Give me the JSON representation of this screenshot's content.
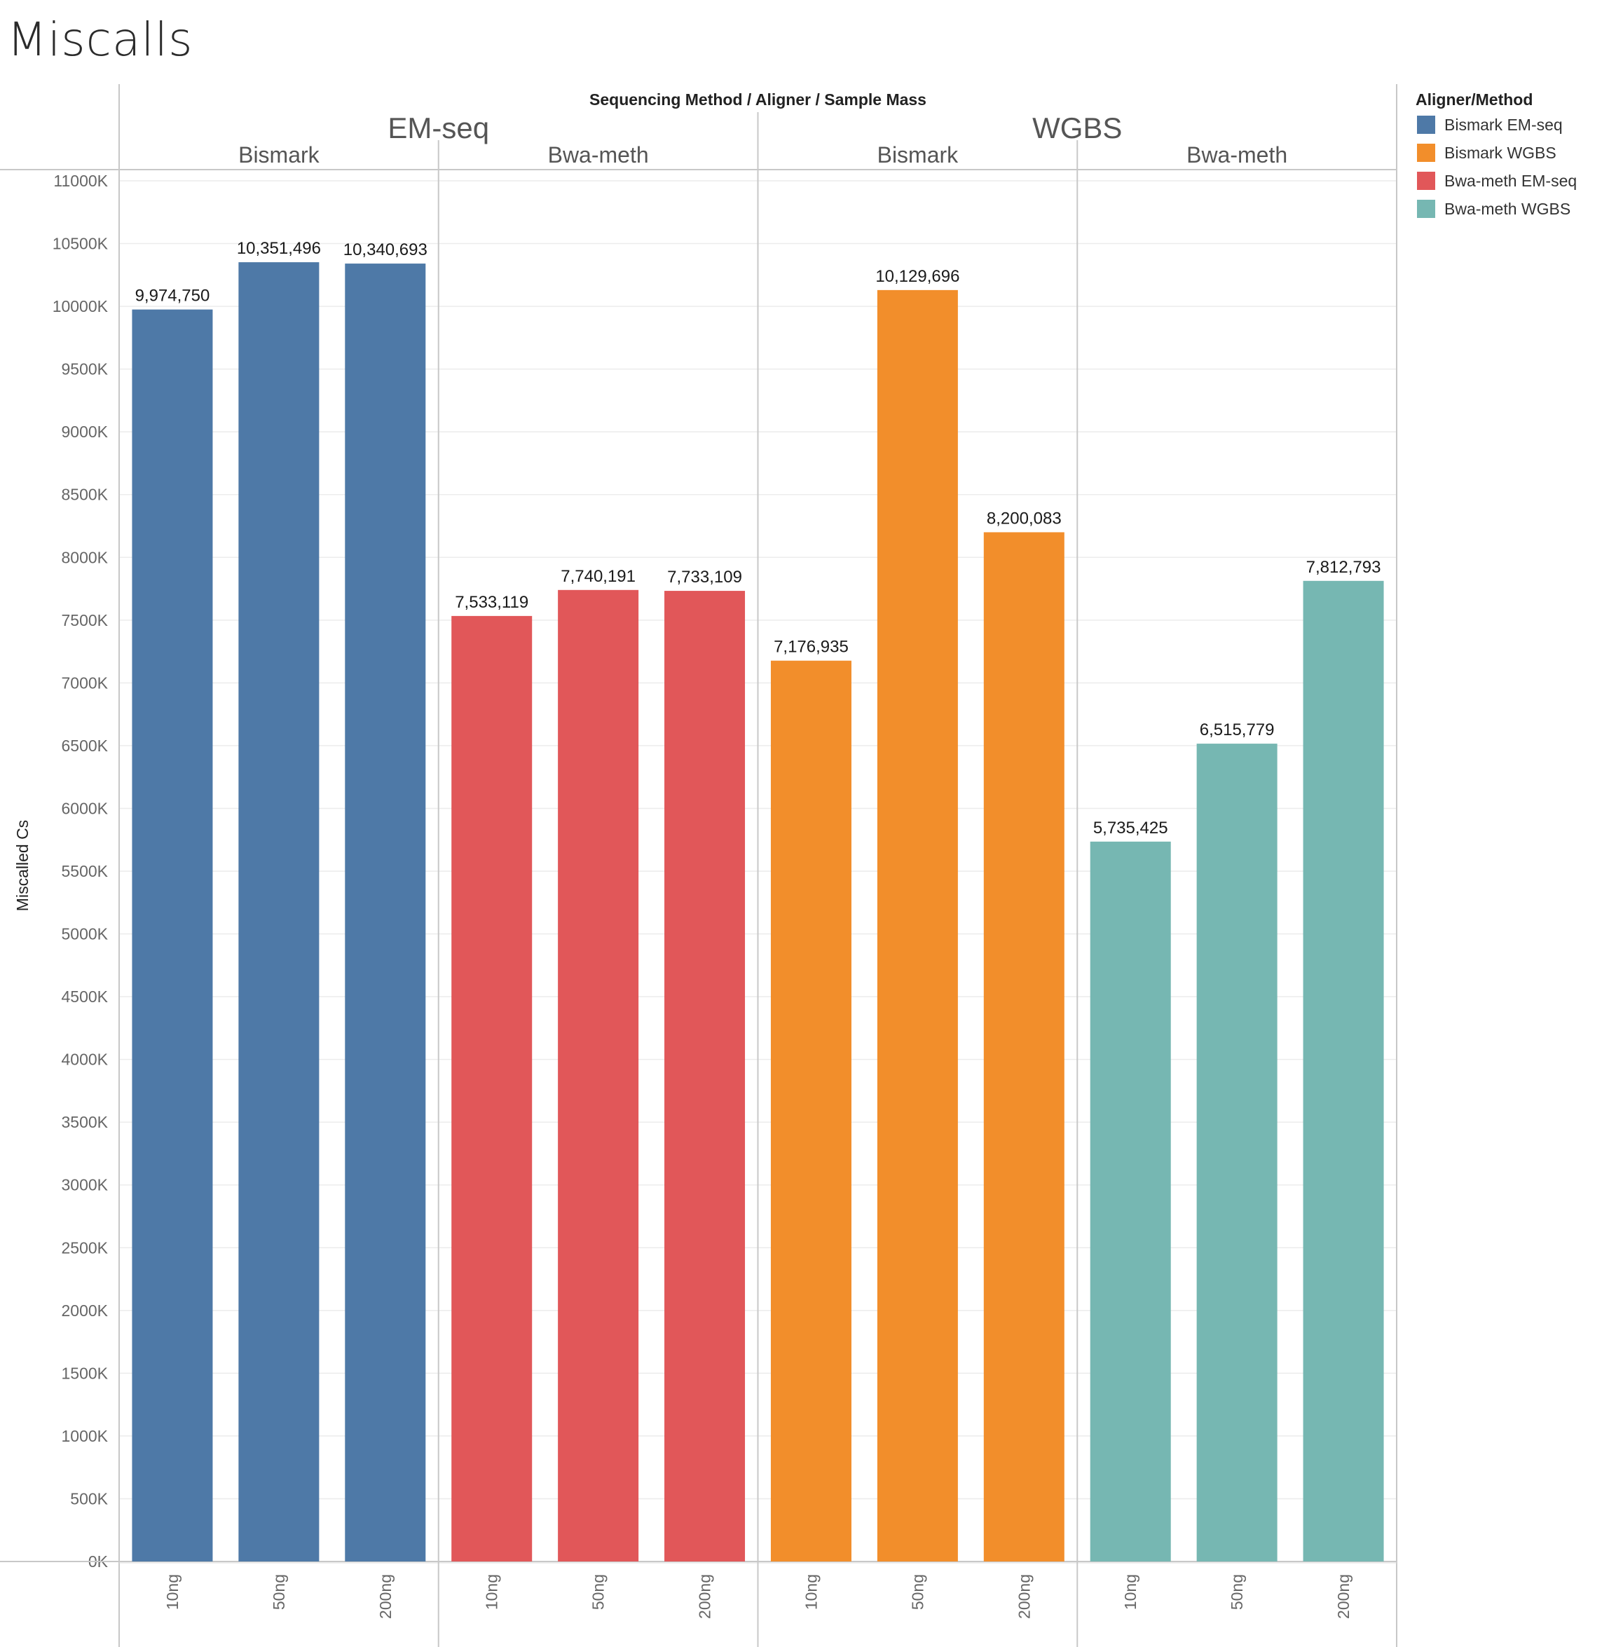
{
  "title": "Miscalls",
  "chart_data": {
    "type": "bar",
    "column_header": "Sequencing Method / Aligner / Sample Mass",
    "ylabel": "Miscalled Cs",
    "ylim": [
      0,
      11000000
    ],
    "yticks": [
      "0K",
      "500K",
      "1000K",
      "1500K",
      "2000K",
      "2500K",
      "3000K",
      "3500K",
      "4000K",
      "4500K",
      "5000K",
      "5500K",
      "6000K",
      "6500K",
      "7000K",
      "7500K",
      "8000K",
      "8500K",
      "9000K",
      "9500K",
      "10000K",
      "10500K",
      "11000K"
    ],
    "grid": true,
    "legend": {
      "title": "Aligner/Method",
      "placement": "right",
      "items": [
        {
          "label": "Bismark EM-seq",
          "color": "#4e79a7"
        },
        {
          "label": "Bismark WGBS",
          "color": "#f28e2b"
        },
        {
          "label": "Bwa-meth EM-seq",
          "color": "#e15759"
        },
        {
          "label": "Bwa-meth WGBS",
          "color": "#76b7b2"
        }
      ]
    },
    "methods": [
      {
        "name": "EM-seq",
        "aligners": [
          {
            "name": "Bismark",
            "color": "#4e79a7",
            "categories": [
              "10ng",
              "50ng",
              "200ng"
            ],
            "values": [
              9974750,
              10351496,
              10340693
            ],
            "labels": [
              "9,974,750",
              "10,351,496",
              "10,340,693"
            ]
          },
          {
            "name": "Bwa-meth",
            "color": "#e15759",
            "categories": [
              "10ng",
              "50ng",
              "200ng"
            ],
            "values": [
              7533119,
              7740191,
              7733109
            ],
            "labels": [
              "7,533,119",
              "7,740,191",
              "7,733,109"
            ]
          }
        ]
      },
      {
        "name": "WGBS",
        "aligners": [
          {
            "name": "Bismark",
            "color": "#f28e2b",
            "categories": [
              "10ng",
              "50ng",
              "200ng"
            ],
            "values": [
              7176935,
              10129696,
              8200083
            ],
            "labels": [
              "7,176,935",
              "10,129,696",
              "8,200,083"
            ]
          },
          {
            "name": "Bwa-meth",
            "color": "#76b7b2",
            "categories": [
              "10ng",
              "50ng",
              "200ng"
            ],
            "values": [
              5735425,
              6515779,
              7812793
            ],
            "labels": [
              "5,735,425",
              "6,515,779",
              "7,812,793"
            ]
          }
        ]
      }
    ]
  }
}
